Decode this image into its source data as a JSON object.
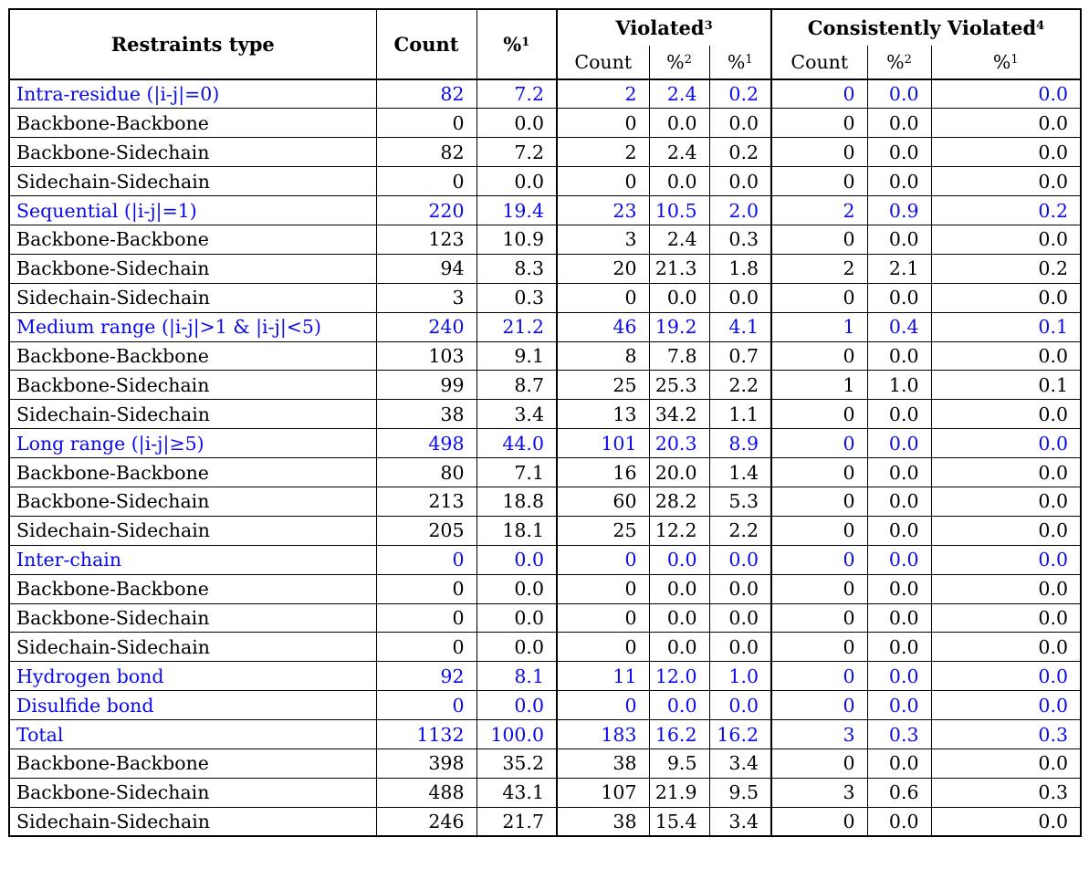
{
  "colors": {
    "category_text": "#0a0aee",
    "body_text": "#000000",
    "border": "#000000",
    "background": "#ffffff"
  },
  "table": {
    "header": {
      "restraints_type": "Restraints type",
      "count": "Count",
      "percent": "%",
      "sup1": "1",
      "sup2": "2",
      "violated": "Violated",
      "violated_sup": "3",
      "consistently_violated": "Consistently Violated",
      "consistently_violated_sup": "4",
      "sub_count": "Count"
    },
    "columns_order": [
      "count",
      "pct-of-total",
      "violated-count",
      "violated-pct",
      "violated-pct-of-total",
      "cons-violated-count",
      "cons-violated-pct",
      "cons-violated-pct-of-total"
    ],
    "rows": [
      {
        "label": "Intra-residue (|i-j|=0)",
        "category": true,
        "values": [
          "82",
          "7.2",
          "2",
          "2.4",
          "0.2",
          "0",
          "0.0",
          "0.0"
        ]
      },
      {
        "label": "Backbone-Backbone",
        "category": false,
        "values": [
          "0",
          "0.0",
          "0",
          "0.0",
          "0.0",
          "0",
          "0.0",
          "0.0"
        ]
      },
      {
        "label": "Backbone-Sidechain",
        "category": false,
        "values": [
          "82",
          "7.2",
          "2",
          "2.4",
          "0.2",
          "0",
          "0.0",
          "0.0"
        ]
      },
      {
        "label": "Sidechain-Sidechain",
        "category": false,
        "values": [
          "0",
          "0.0",
          "0",
          "0.0",
          "0.0",
          "0",
          "0.0",
          "0.0"
        ]
      },
      {
        "label": "Sequential (|i-j|=1)",
        "category": true,
        "values": [
          "220",
          "19.4",
          "23",
          "10.5",
          "2.0",
          "2",
          "0.9",
          "0.2"
        ]
      },
      {
        "label": "Backbone-Backbone",
        "category": false,
        "values": [
          "123",
          "10.9",
          "3",
          "2.4",
          "0.3",
          "0",
          "0.0",
          "0.0"
        ]
      },
      {
        "label": "Backbone-Sidechain",
        "category": false,
        "values": [
          "94",
          "8.3",
          "20",
          "21.3",
          "1.8",
          "2",
          "2.1",
          "0.2"
        ]
      },
      {
        "label": "Sidechain-Sidechain",
        "category": false,
        "values": [
          "3",
          "0.3",
          "0",
          "0.0",
          "0.0",
          "0",
          "0.0",
          "0.0"
        ]
      },
      {
        "label": "Medium range (|i-j|>1 & |i-j|<5)",
        "category": true,
        "values": [
          "240",
          "21.2",
          "46",
          "19.2",
          "4.1",
          "1",
          "0.4",
          "0.1"
        ]
      },
      {
        "label": "Backbone-Backbone",
        "category": false,
        "values": [
          "103",
          "9.1",
          "8",
          "7.8",
          "0.7",
          "0",
          "0.0",
          "0.0"
        ]
      },
      {
        "label": "Backbone-Sidechain",
        "category": false,
        "values": [
          "99",
          "8.7",
          "25",
          "25.3",
          "2.2",
          "1",
          "1.0",
          "0.1"
        ]
      },
      {
        "label": "Sidechain-Sidechain",
        "category": false,
        "values": [
          "38",
          "3.4",
          "13",
          "34.2",
          "1.1",
          "0",
          "0.0",
          "0.0"
        ]
      },
      {
        "label": "Long range (|i-j|≥5)",
        "category": true,
        "values": [
          "498",
          "44.0",
          "101",
          "20.3",
          "8.9",
          "0",
          "0.0",
          "0.0"
        ]
      },
      {
        "label": "Backbone-Backbone",
        "category": false,
        "values": [
          "80",
          "7.1",
          "16",
          "20.0",
          "1.4",
          "0",
          "0.0",
          "0.0"
        ]
      },
      {
        "label": "Backbone-Sidechain",
        "category": false,
        "values": [
          "213",
          "18.8",
          "60",
          "28.2",
          "5.3",
          "0",
          "0.0",
          "0.0"
        ]
      },
      {
        "label": "Sidechain-Sidechain",
        "category": false,
        "values": [
          "205",
          "18.1",
          "25",
          "12.2",
          "2.2",
          "0",
          "0.0",
          "0.0"
        ]
      },
      {
        "label": "Inter-chain",
        "category": true,
        "values": [
          "0",
          "0.0",
          "0",
          "0.0",
          "0.0",
          "0",
          "0.0",
          "0.0"
        ]
      },
      {
        "label": "Backbone-Backbone",
        "category": false,
        "values": [
          "0",
          "0.0",
          "0",
          "0.0",
          "0.0",
          "0",
          "0.0",
          "0.0"
        ]
      },
      {
        "label": "Backbone-Sidechain",
        "category": false,
        "values": [
          "0",
          "0.0",
          "0",
          "0.0",
          "0.0",
          "0",
          "0.0",
          "0.0"
        ]
      },
      {
        "label": "Sidechain-Sidechain",
        "category": false,
        "values": [
          "0",
          "0.0",
          "0",
          "0.0",
          "0.0",
          "0",
          "0.0",
          "0.0"
        ]
      },
      {
        "label": "Hydrogen bond",
        "category": true,
        "values": [
          "92",
          "8.1",
          "11",
          "12.0",
          "1.0",
          "0",
          "0.0",
          "0.0"
        ]
      },
      {
        "label": "Disulfide bond",
        "category": true,
        "values": [
          "0",
          "0.0",
          "0",
          "0.0",
          "0.0",
          "0",
          "0.0",
          "0.0"
        ]
      },
      {
        "label": "Total",
        "category": true,
        "values": [
          "1132",
          "100.0",
          "183",
          "16.2",
          "16.2",
          "3",
          "0.3",
          "0.3"
        ]
      },
      {
        "label": "Backbone-Backbone",
        "category": false,
        "values": [
          "398",
          "35.2",
          "38",
          "9.5",
          "3.4",
          "0",
          "0.0",
          "0.0"
        ]
      },
      {
        "label": "Backbone-Sidechain",
        "category": false,
        "values": [
          "488",
          "43.1",
          "107",
          "21.9",
          "9.5",
          "3",
          "0.6",
          "0.3"
        ]
      },
      {
        "label": "Sidechain-Sidechain",
        "category": false,
        "values": [
          "246",
          "21.7",
          "38",
          "15.4",
          "3.4",
          "0",
          "0.0",
          "0.0"
        ]
      }
    ]
  }
}
